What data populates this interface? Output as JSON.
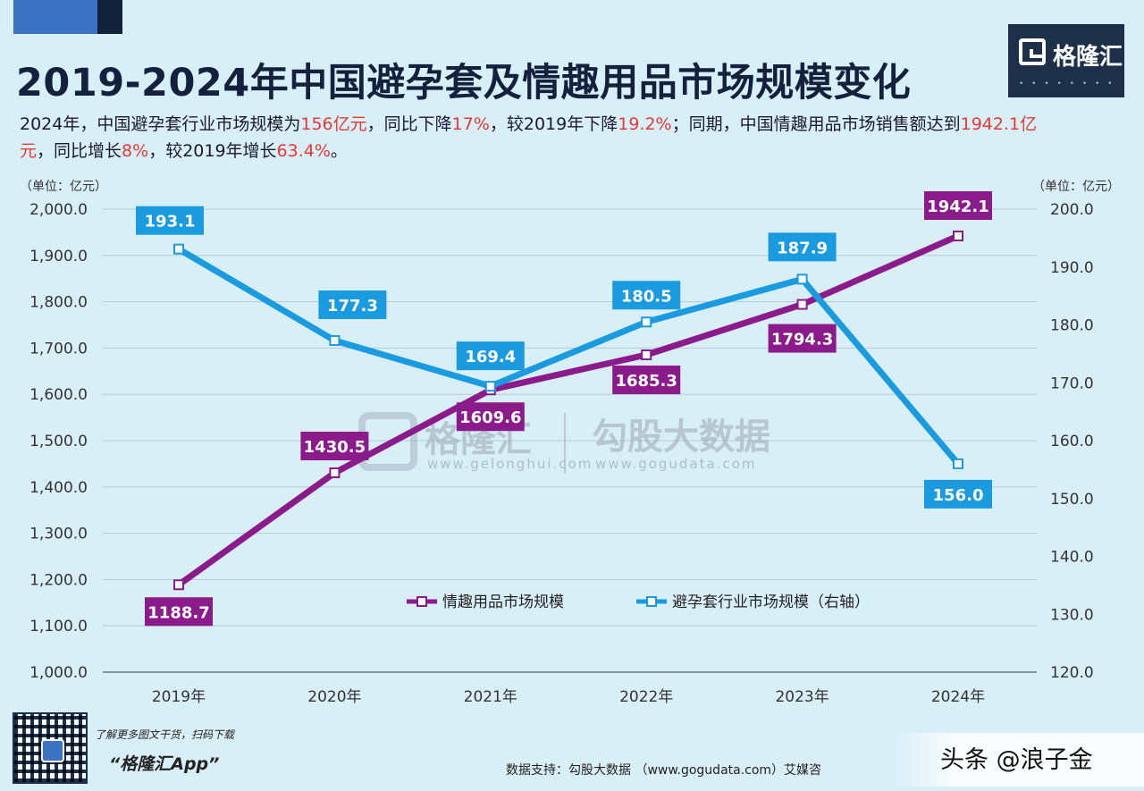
{
  "header": {
    "title": "2019-2024年中国避孕套及情趣用品市场规模变化",
    "subtitle_parts": [
      {
        "text": "2024年，中国避孕套行业市场规模为",
        "hl": false
      },
      {
        "text": "156亿元",
        "hl": true
      },
      {
        "text": "，同比下降",
        "hl": false
      },
      {
        "text": "17%",
        "hl": true
      },
      {
        "text": "，较2019年下降",
        "hl": false
      },
      {
        "text": "19.2%",
        "hl": true
      },
      {
        "text": "；同期，中国情趣用品市场销售额达到",
        "hl": false
      },
      {
        "text": "1942.1亿元",
        "hl": true
      },
      {
        "text": "，同比增长",
        "hl": false
      },
      {
        "text": "8%",
        "hl": true
      },
      {
        "text": "，较2019年增长",
        "hl": false
      },
      {
        "text": "63.4%",
        "hl": true
      },
      {
        "text": "。",
        "hl": false
      }
    ]
  },
  "brand": {
    "logo_text": "格隆汇",
    "watermark_left": "格隆汇",
    "watermark_left_url": "www.gelonghui.com",
    "watermark_right": "勾股大数据",
    "watermark_right_url": "www.gogudata.com"
  },
  "chart_data": {
    "type": "line",
    "title": "2019-2024年中国避孕套及情趣用品市场规模变化",
    "unit_left": "（单位：亿元）",
    "unit_right": "（单位：亿元）",
    "x": [
      "2019年",
      "2020年",
      "2021年",
      "2022年",
      "2023年",
      "2024年"
    ],
    "y_left": {
      "min": 1000,
      "max": 2000,
      "step": 100,
      "ticks": [
        "1,000.0",
        "1,100.0",
        "1,200.0",
        "1,300.0",
        "1,400.0",
        "1,500.0",
        "1,600.0",
        "1,700.0",
        "1,800.0",
        "1,900.0",
        "2,000.0"
      ]
    },
    "y_right": {
      "min": 120,
      "max": 200,
      "step": 10,
      "ticks": [
        "120.0",
        "130.0",
        "140.0",
        "150.0",
        "160.0",
        "170.0",
        "180.0",
        "190.0",
        "200.0"
      ]
    },
    "series": [
      {
        "name": "情趣用品市场规模",
        "axis": "left",
        "color": "#8b1a8b",
        "values": [
          1188.7,
          1430.5,
          1609.6,
          1685.3,
          1794.3,
          1942.1
        ],
        "labels": [
          "1188.7",
          "1430.5",
          "1609.6",
          "1685.3",
          "1794.3",
          "1942.1"
        ]
      },
      {
        "name": "避孕套行业市场规模（右轴）",
        "axis": "right",
        "color": "#1a9be0",
        "values": [
          193.1,
          177.3,
          169.4,
          180.5,
          187.9,
          156.0
        ],
        "labels": [
          "193.1",
          "177.3",
          "169.4",
          "180.5",
          "187.9",
          "156.0"
        ]
      }
    ],
    "grid": true,
    "legend": "lower-center"
  },
  "footer": {
    "promo_line1": "了解更多图文干货，扫码下载",
    "promo_line2": "“格隆汇App”",
    "source": "数据支持：勾股大数据 （www.gogudata.com）艾媒咨",
    "corner_watermark": "头条 @浪子金"
  }
}
